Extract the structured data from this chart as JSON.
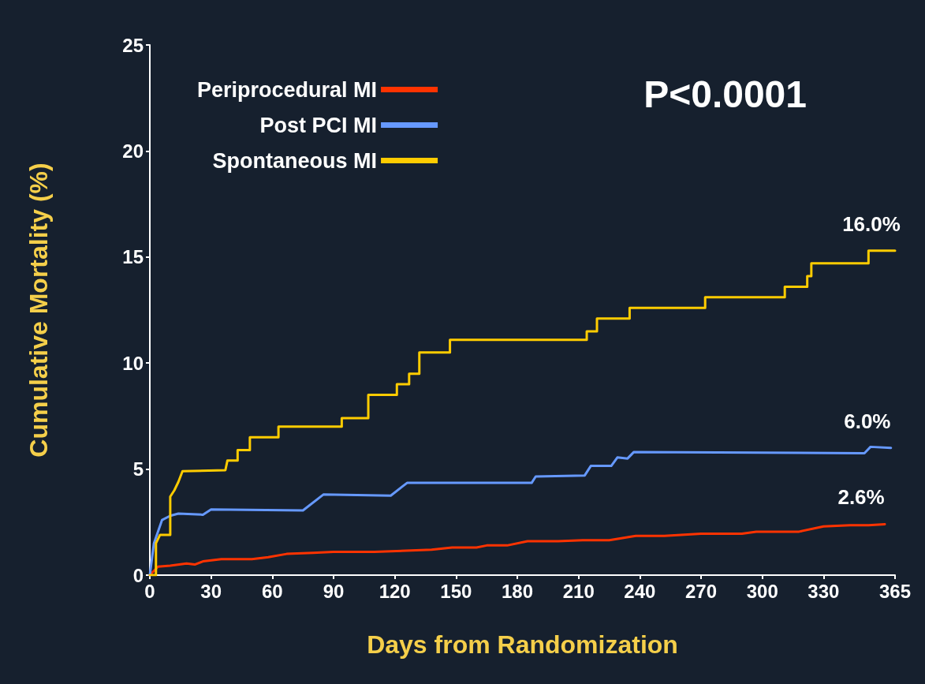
{
  "chart_data": {
    "type": "line",
    "xlabel": "Days from Randomization",
    "ylabel": "Cumulative Mortality (%)",
    "xlim": [
      0,
      365
    ],
    "xticks": [
      0,
      30,
      60,
      90,
      120,
      150,
      180,
      210,
      240,
      270,
      300,
      330,
      365
    ],
    "ylim": [
      0,
      25
    ],
    "yticks": [
      0,
      5,
      10,
      15,
      20,
      25
    ],
    "grid": false,
    "legend": "top left",
    "marker": "none",
    "line_style": "solid",
    "series": [
      {
        "name": "Periprocedural MI",
        "color": "#ff3300",
        "x": [
          0,
          4,
          10,
          18,
          22,
          26,
          35,
          50,
          58,
          67,
          80,
          90,
          110,
          138,
          148,
          160,
          165,
          175,
          185,
          200,
          212,
          225,
          238,
          252,
          270,
          290,
          297,
          318,
          330,
          343,
          352,
          360
        ],
        "values": [
          0,
          0.4,
          0.45,
          0.55,
          0.5,
          0.65,
          0.75,
          0.75,
          0.85,
          1.0,
          1.05,
          1.1,
          1.1,
          1.2,
          1.3,
          1.3,
          1.4,
          1.4,
          1.6,
          1.6,
          1.65,
          1.65,
          1.85,
          1.85,
          1.95,
          1.95,
          2.05,
          2.05,
          2.3,
          2.35,
          2.35,
          2.4
        ]
      },
      {
        "name": "Post PCI MI",
        "color": "#6699ff",
        "x": [
          0,
          2,
          6,
          10,
          14,
          26,
          30,
          75,
          85,
          118,
          126,
          187,
          189,
          213,
          216,
          226,
          229,
          234,
          237,
          350,
          353,
          363
        ],
        "values": [
          0,
          1.5,
          2.6,
          2.8,
          2.9,
          2.85,
          3.1,
          3.05,
          3.8,
          3.75,
          4.35,
          4.35,
          4.65,
          4.7,
          5.15,
          5.15,
          5.55,
          5.5,
          5.8,
          5.75,
          6.05,
          6.0
        ]
      },
      {
        "name": "Spontaneous MI",
        "color": "#ffcc00",
        "x": [
          0,
          3,
          3,
          5,
          10,
          10,
          12,
          14,
          16,
          37,
          38,
          43,
          43,
          49,
          49,
          63,
          63,
          94,
          94,
          107,
          107,
          121,
          121,
          127,
          127,
          132,
          132,
          147,
          147,
          214,
          214,
          219,
          219,
          235,
          235,
          272,
          272,
          311,
          311,
          322,
          322,
          324,
          324,
          352,
          352,
          365
        ],
        "values": [
          0,
          0,
          1.5,
          1.9,
          1.9,
          3.7,
          4.0,
          4.4,
          4.9,
          4.95,
          5.4,
          5.4,
          5.9,
          5.9,
          6.5,
          6.5,
          7.0,
          7.0,
          7.4,
          7.4,
          8.5,
          8.5,
          9.0,
          9.0,
          9.5,
          9.5,
          10.5,
          10.5,
          11.1,
          11.1,
          11.5,
          11.5,
          12.1,
          12.1,
          12.6,
          12.6,
          13.1,
          13.1,
          13.6,
          13.6,
          14.1,
          14.1,
          14.7,
          14.7,
          15.3,
          15.3
        ]
      }
    ],
    "annotations": [
      "P<0.0001",
      {
        "text": "16.0%",
        "x": 365,
        "y": 15.3
      },
      {
        "text": "6.0%",
        "x": 363,
        "y": 6.0
      },
      {
        "text": "2.6%",
        "x": 360,
        "y": 2.4
      }
    ]
  }
}
